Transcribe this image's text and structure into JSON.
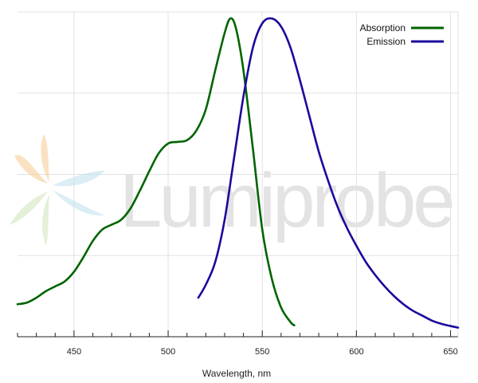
{
  "chart_data": {
    "type": "line",
    "title": "",
    "xlabel": "Wavelength, nm",
    "ylabel": "",
    "xlim": [
      420,
      654
    ],
    "ylim": [
      0,
      1.0
    ],
    "x_ticks": [
      450,
      500,
      550,
      600,
      650
    ],
    "x_minor_step": 10,
    "grid": true,
    "legend_position": "top-right",
    "watermark": "Lumiprobe",
    "series": [
      {
        "name": "Absorption",
        "color": "#006400",
        "points": [
          [
            420,
            0.1
          ],
          [
            425,
            0.105
          ],
          [
            430,
            0.12
          ],
          [
            435,
            0.14
          ],
          [
            440,
            0.155
          ],
          [
            445,
            0.17
          ],
          [
            450,
            0.2
          ],
          [
            455,
            0.245
          ],
          [
            460,
            0.295
          ],
          [
            465,
            0.33
          ],
          [
            470,
            0.345
          ],
          [
            475,
            0.36
          ],
          [
            480,
            0.395
          ],
          [
            485,
            0.45
          ],
          [
            490,
            0.51
          ],
          [
            495,
            0.565
          ],
          [
            500,
            0.595
          ],
          [
            505,
            0.6
          ],
          [
            510,
            0.605
          ],
          [
            515,
            0.635
          ],
          [
            520,
            0.7
          ],
          [
            525,
            0.82
          ],
          [
            530,
            0.935
          ],
          [
            533,
            0.98
          ],
          [
            536,
            0.95
          ],
          [
            540,
            0.82
          ],
          [
            545,
            0.58
          ],
          [
            550,
            0.33
          ],
          [
            555,
            0.18
          ],
          [
            560,
            0.09
          ],
          [
            565,
            0.045
          ],
          [
            567,
            0.035
          ]
        ]
      },
      {
        "name": "Emission",
        "color": "#1a0a9c",
        "points": [
          [
            516,
            0.12
          ],
          [
            520,
            0.16
          ],
          [
            525,
            0.23
          ],
          [
            530,
            0.36
          ],
          [
            535,
            0.55
          ],
          [
            540,
            0.74
          ],
          [
            545,
            0.89
          ],
          [
            550,
            0.965
          ],
          [
            555,
            0.98
          ],
          [
            560,
            0.955
          ],
          [
            565,
            0.89
          ],
          [
            570,
            0.79
          ],
          [
            575,
            0.68
          ],
          [
            580,
            0.57
          ],
          [
            585,
            0.48
          ],
          [
            590,
            0.4
          ],
          [
            595,
            0.335
          ],
          [
            600,
            0.28
          ],
          [
            605,
            0.23
          ],
          [
            610,
            0.19
          ],
          [
            615,
            0.155
          ],
          [
            620,
            0.125
          ],
          [
            625,
            0.1
          ],
          [
            630,
            0.08
          ],
          [
            635,
            0.065
          ],
          [
            640,
            0.05
          ],
          [
            645,
            0.04
          ],
          [
            650,
            0.033
          ],
          [
            654,
            0.028
          ]
        ]
      }
    ]
  }
}
